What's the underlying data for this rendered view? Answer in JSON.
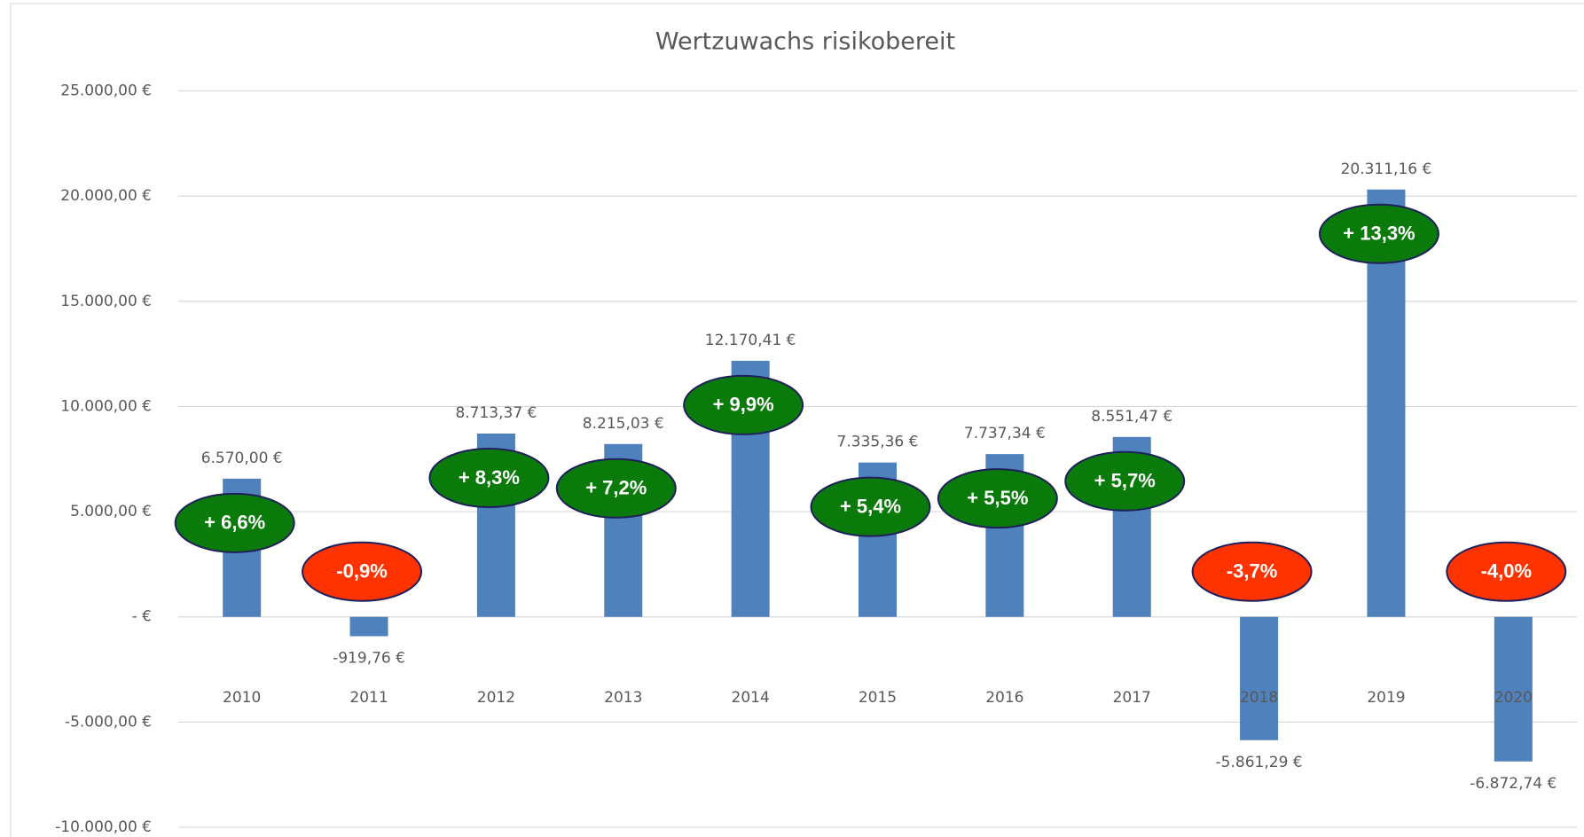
{
  "chart_data": {
    "type": "bar",
    "title": "Wertzuwachs risikobereit",
    "categories": [
      "2010",
      "2011",
      "2012",
      "2013",
      "2014",
      "2015",
      "2016",
      "2017",
      "2018",
      "2019",
      "2020"
    ],
    "values": [
      6570.0,
      -919.76,
      8713.37,
      8215.03,
      12170.41,
      7335.36,
      7737.34,
      8551.47,
      -5861.29,
      20311.16,
      -6872.74
    ],
    "value_labels": [
      "6.570,00 €",
      "-919,76 €",
      "8.713,37 €",
      "8.215,03 €",
      "12.170,41 €",
      "7.335,36 €",
      "7.737,34 €",
      "8.551,47 €",
      "-5.861,29 €",
      "20.311,16 €",
      "-6.872,74 €"
    ],
    "annotations": [
      "+ 6,6%",
      "-0,9%",
      "+ 8,3%",
      "+ 7,2%",
      "+ 9,9%",
      "+ 5,4%",
      "+ 5,5%",
      "+ 5,7%",
      "-3,7%",
      "+ 13,3%",
      "-4,0%"
    ],
    "annotation_colors": {
      "positive": "#0a7a0a",
      "negative": "#ff3300"
    },
    "color": "#4f81bd",
    "ylim": [
      -10000,
      25000
    ],
    "yticks": [
      {
        "value": -10000,
        "label": "-10.000,00 €"
      },
      {
        "value": -5000,
        "label": "-5.000,00 €"
      },
      {
        "value": 0,
        "label": "-   €"
      },
      {
        "value": 5000,
        "label": "5.000,00 €"
      },
      {
        "value": 10000,
        "label": "10.000,00 €"
      },
      {
        "value": 15000,
        "label": "15.000,00 €"
      },
      {
        "value": 20000,
        "label": "20.000,00 €"
      },
      {
        "value": 25000,
        "label": "25.000,00 €"
      }
    ],
    "grid": true
  }
}
